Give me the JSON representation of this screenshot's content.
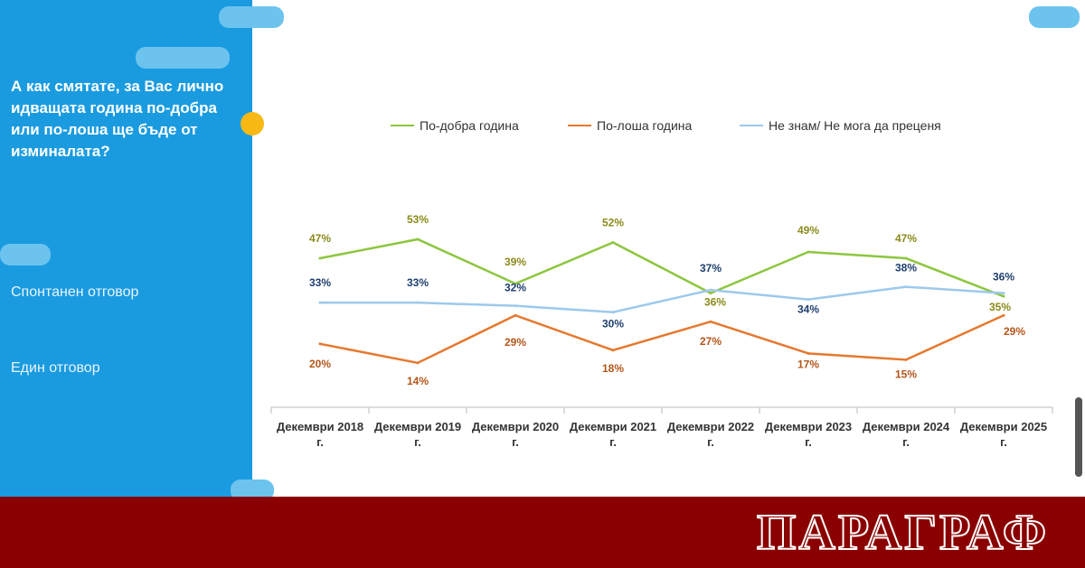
{
  "sidebar": {
    "question": "А как смятате, за Вас лично идващата година по-добра или по-лоша ще бъде от изминалата?",
    "notes": [
      "Спонтанен отговор",
      "Един отговор"
    ]
  },
  "chart_data": {
    "type": "line",
    "categories": [
      "Декември 2018 г.",
      "Декември 2019 г.",
      "Декември 2020 г.",
      "Декември 2021 г.",
      "Декември 2022 г.",
      "Декември 2023 г.",
      "Декември 2024 г.",
      "Декември 2025 г."
    ],
    "series": [
      {
        "name": "По-добра година",
        "color": "#8dc63f",
        "label_color": "#8a8a1a",
        "values": [
          47,
          53,
          39,
          52,
          36,
          49,
          47,
          35
        ],
        "value_labels": [
          "47%",
          "53%",
          "39%",
          "52%",
          "36%",
          "49%",
          "47%",
          "35%"
        ]
      },
      {
        "name": "По-лоша година",
        "color": "#e5792f",
        "label_color": "#b5561a",
        "values": [
          20,
          14,
          29,
          18,
          27,
          17,
          15,
          29
        ],
        "value_labels": [
          "20%",
          "14%",
          "29%",
          "18%",
          "27%",
          "17%",
          "15%",
          "29%"
        ]
      },
      {
        "name": "Не знам/ Не мога да преценя",
        "color": "#9dc9ec",
        "label_color": "#1f3f6e",
        "values": [
          33,
          33,
          32,
          30,
          37,
          34,
          38,
          36
        ],
        "value_labels": [
          "33%",
          "33%",
          "32%",
          "30%",
          "37%",
          "34%",
          "38%",
          "36%"
        ]
      }
    ]
  },
  "banner": {
    "title": "ПАРАГРАФ"
  }
}
